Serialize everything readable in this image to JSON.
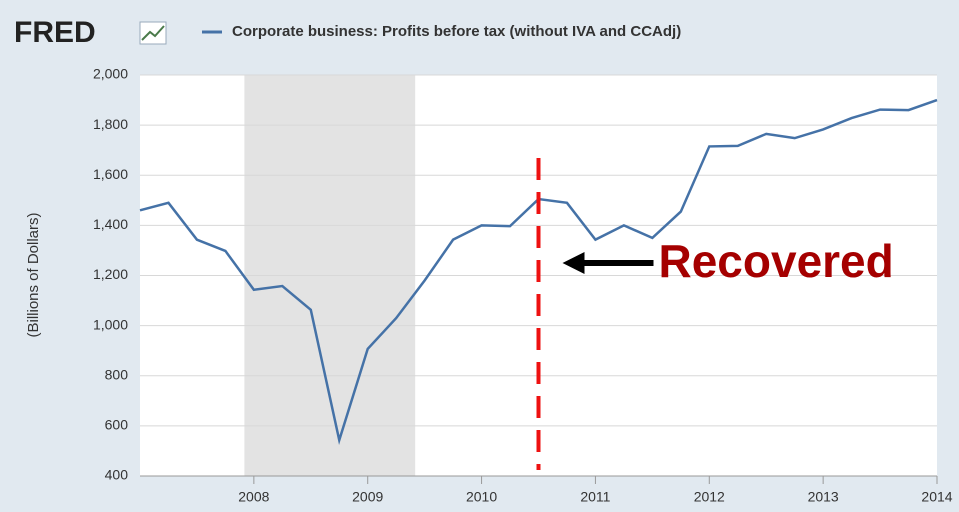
{
  "chart_data": {
    "type": "line",
    "logo": "FRED",
    "y_label": "(Billions of Dollars)",
    "x": [
      2007,
      2007.25,
      2007.5,
      2007.75,
      2008,
      2008.25,
      2008.5,
      2008.75,
      2009,
      2009.25,
      2009.5,
      2009.75,
      2010,
      2010.25,
      2010.5,
      2010.75,
      2011,
      2011.25,
      2011.5,
      2011.75,
      2012,
      2012.25,
      2012.5,
      2012.75,
      2013,
      2013.25,
      2013.5,
      2013.75,
      2014
    ],
    "series": [
      {
        "name": "Corporate business: Profits before tax (without IVA and CCAdj)",
        "color": "#4572a7",
        "values": [
          1460,
          1490,
          1343,
          1298,
          1143,
          1158,
          1063,
          543,
          907,
          1030,
          1180,
          1343,
          1400,
          1397,
          1505,
          1490,
          1343,
          1400,
          1350,
          1455,
          1715,
          1717,
          1765,
          1748,
          1783,
          1828,
          1862,
          1860,
          1900
        ]
      }
    ],
    "xlim": [
      2007,
      2014
    ],
    "xticks": [
      2008,
      2009,
      2010,
      2011,
      2012,
      2013,
      2014
    ],
    "ylim": [
      400,
      2000
    ],
    "yticks": [
      400,
      600,
      800,
      {
        "value": 1000,
        "label": "1,000"
      },
      {
        "value": 1200,
        "label": "1,200"
      },
      {
        "value": 1400,
        "label": "1,400"
      },
      {
        "value": 1600,
        "label": "1,600"
      },
      {
        "value": 1800,
        "label": "1,800"
      },
      {
        "value": 2000,
        "label": "2,000"
      }
    ],
    "grid": true,
    "recession": [
      2007.917,
      2009.417
    ],
    "annotation": {
      "text": "Recovered",
      "x": 2010.5,
      "color": "#a50000"
    }
  }
}
